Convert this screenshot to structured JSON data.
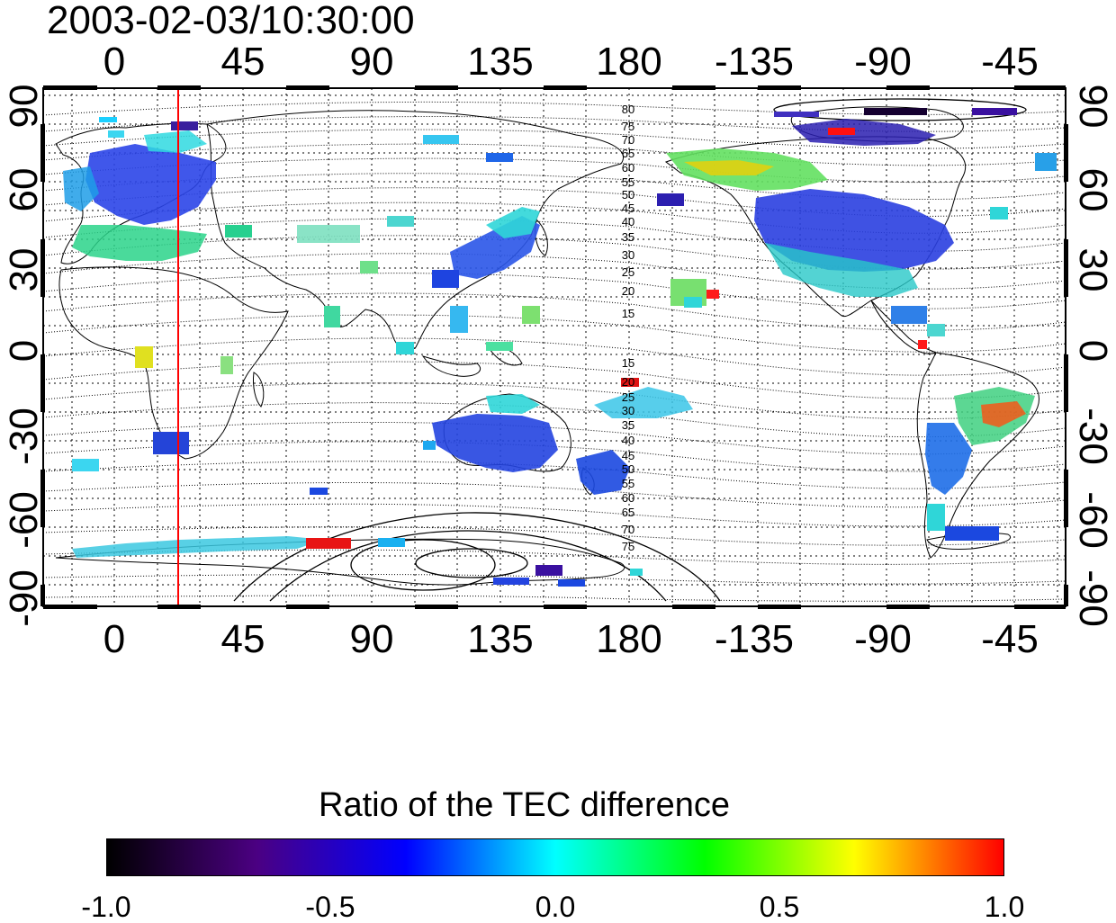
{
  "title": "2003-02-03/10:30:00",
  "lon_ticks": [
    "0",
    "45",
    "90",
    "135",
    "180",
    "-135",
    "-90",
    "-45"
  ],
  "lat_ticks": [
    "90",
    "60",
    "30",
    "0",
    "-30",
    "-60",
    "-90"
  ],
  "lat_ticks_right": [
    "90",
    "60",
    "30",
    "0",
    "-30",
    "-60",
    "-90"
  ],
  "contour_labels_north": [
    "80",
    "75",
    "70",
    "65",
    "60",
    "55",
    "50",
    "45",
    "40",
    "35",
    "30",
    "25",
    "20",
    "15"
  ],
  "contour_labels_south": [
    "15",
    "20",
    "25",
    "30",
    "35",
    "40",
    "45",
    "50",
    "55",
    "60",
    "65",
    "70",
    "75"
  ],
  "colorbar": {
    "title": "Ratio of the TEC difference",
    "ticks": [
      "-1.0",
      "-0.5",
      "0.0",
      "0.5",
      "1.0"
    ],
    "colors": [
      "#000000",
      "#4b0082",
      "#0000ff",
      "#00ffff",
      "#00ff00",
      "#ffff00",
      "#ff0000"
    ]
  },
  "marker_line": {
    "longitude": 22,
    "color": "#ff0000"
  }
}
